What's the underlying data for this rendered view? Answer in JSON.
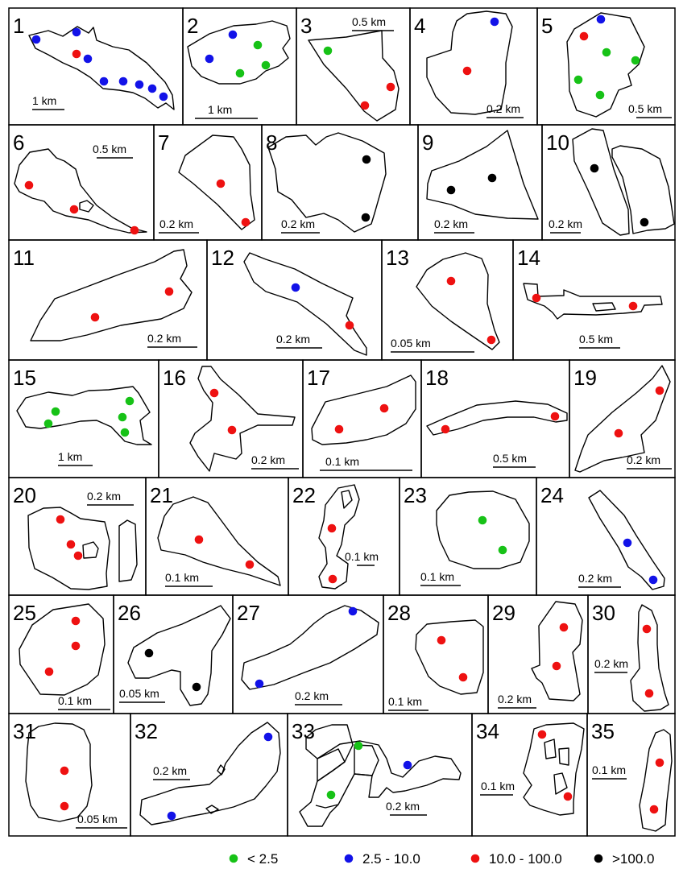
{
  "colors": {
    "lt2_5": "#17c217",
    "2_5to10": "#1212e8",
    "10to100": "#ee1111",
    "gt100": "#000000"
  },
  "legend": [
    {
      "key": "lt2_5",
      "label": "< 2.5"
    },
    {
      "key": "2_5to10",
      "label": "2.5 - 10.0"
    },
    {
      "key": "10to100",
      "label": "10.0 - 100.0"
    },
    {
      "key": "gt100",
      "label": ">100.0"
    }
  ],
  "panels": [
    {
      "num": "1",
      "scale": "1 km",
      "dots": [
        "2_5to10",
        "2_5to10",
        "10to100",
        "2_5to10",
        "2_5to10",
        "2_5to10",
        "2_5to10",
        "2_5to10",
        "2_5to10"
      ]
    },
    {
      "num": "2",
      "scale": "1 km",
      "dots": [
        "2_5to10",
        "lt2_5",
        "2_5to10",
        "lt2_5",
        "lt2_5"
      ]
    },
    {
      "num": "3",
      "scale": "0.5 km",
      "dots": [
        "lt2_5",
        "10to100",
        "10to100"
      ]
    },
    {
      "num": "4",
      "scale": "0.2 km",
      "dots": [
        "2_5to10",
        "10to100"
      ]
    },
    {
      "num": "5",
      "scale": "0.5 km",
      "dots": [
        "2_5to10",
        "10to100",
        "lt2_5",
        "lt2_5",
        "lt2_5",
        "lt2_5"
      ]
    },
    {
      "num": "6",
      "scale": "0.5 km",
      "dots": [
        "10to100",
        "10to100",
        "10to100"
      ]
    },
    {
      "num": "7",
      "scale": "0.2 km",
      "dots": [
        "10to100",
        "10to100"
      ]
    },
    {
      "num": "8",
      "scale": "0.2 km",
      "dots": [
        "gt100",
        "gt100"
      ]
    },
    {
      "num": "9",
      "scale": "0.2 km",
      "dots": [
        "gt100",
        "gt100"
      ]
    },
    {
      "num": "10",
      "scale": "0.2 km",
      "dots": [
        "gt100",
        "gt100"
      ]
    },
    {
      "num": "11",
      "scale": "0.2 km",
      "dots": [
        "10to100",
        "10to100"
      ]
    },
    {
      "num": "12",
      "scale": "0.2 km",
      "dots": [
        "2_5to10",
        "10to100"
      ]
    },
    {
      "num": "13",
      "scale": "0.05 km",
      "dots": [
        "10to100",
        "10to100"
      ]
    },
    {
      "num": "14",
      "scale": "0.5 km",
      "dots": [
        "10to100",
        "10to100"
      ]
    },
    {
      "num": "15",
      "scale": "1 km",
      "dots": [
        "lt2_5",
        "lt2_5",
        "lt2_5",
        "lt2_5",
        "lt2_5"
      ]
    },
    {
      "num": "16",
      "scale": "0.2 km",
      "dots": [
        "10to100",
        "10to100"
      ]
    },
    {
      "num": "17",
      "scale": "0.1 km",
      "dots": [
        "10to100",
        "10to100"
      ]
    },
    {
      "num": "18",
      "scale": "0.5 km",
      "dots": [
        "10to100",
        "10to100"
      ]
    },
    {
      "num": "19",
      "scale": "0.2 km",
      "dots": [
        "10to100",
        "10to100"
      ]
    },
    {
      "num": "20",
      "scale": "0.2 km",
      "dots": [
        "10to100",
        "10to100",
        "10to100"
      ]
    },
    {
      "num": "21",
      "scale": "0.1 km",
      "dots": [
        "10to100",
        "10to100"
      ]
    },
    {
      "num": "22",
      "scale": "0.1 km",
      "dots": [
        "10to100",
        "10to100"
      ]
    },
    {
      "num": "23",
      "scale": "0.1 km",
      "dots": [
        "lt2_5",
        "lt2_5"
      ]
    },
    {
      "num": "24",
      "scale": "0.2 km",
      "dots": [
        "2_5to10",
        "2_5to10"
      ]
    },
    {
      "num": "25",
      "scale": "0.1 km",
      "dots": [
        "10to100",
        "10to100",
        "10to100"
      ]
    },
    {
      "num": "26",
      "scale": "0.05 km",
      "dots": [
        "gt100",
        "gt100"
      ]
    },
    {
      "num": "27",
      "scale": "0.2 km",
      "dots": [
        "2_5to10",
        "2_5to10"
      ]
    },
    {
      "num": "28",
      "scale": "0.1 km",
      "dots": [
        "10to100",
        "10to100"
      ]
    },
    {
      "num": "29",
      "scale": "0.2 km",
      "dots": [
        "10to100",
        "10to100"
      ]
    },
    {
      "num": "30",
      "scale": "0.2 km",
      "dots": [
        "10to100",
        "10to100"
      ]
    },
    {
      "num": "31",
      "scale": "0.05 km",
      "dots": [
        "10to100",
        "10to100"
      ]
    },
    {
      "num": "32",
      "scale": "0.2 km",
      "dots": [
        "2_5to10",
        "2_5to10"
      ]
    },
    {
      "num": "33",
      "scale": "0.2 km",
      "dots": [
        "lt2_5",
        "2_5to10",
        "lt2_5"
      ]
    },
    {
      "num": "34",
      "scale": "0.1 km",
      "dots": [
        "10to100",
        "10to100"
      ]
    },
    {
      "num": "35",
      "scale": "0.1 km",
      "dots": [
        "10to100",
        "10to100"
      ]
    }
  ]
}
